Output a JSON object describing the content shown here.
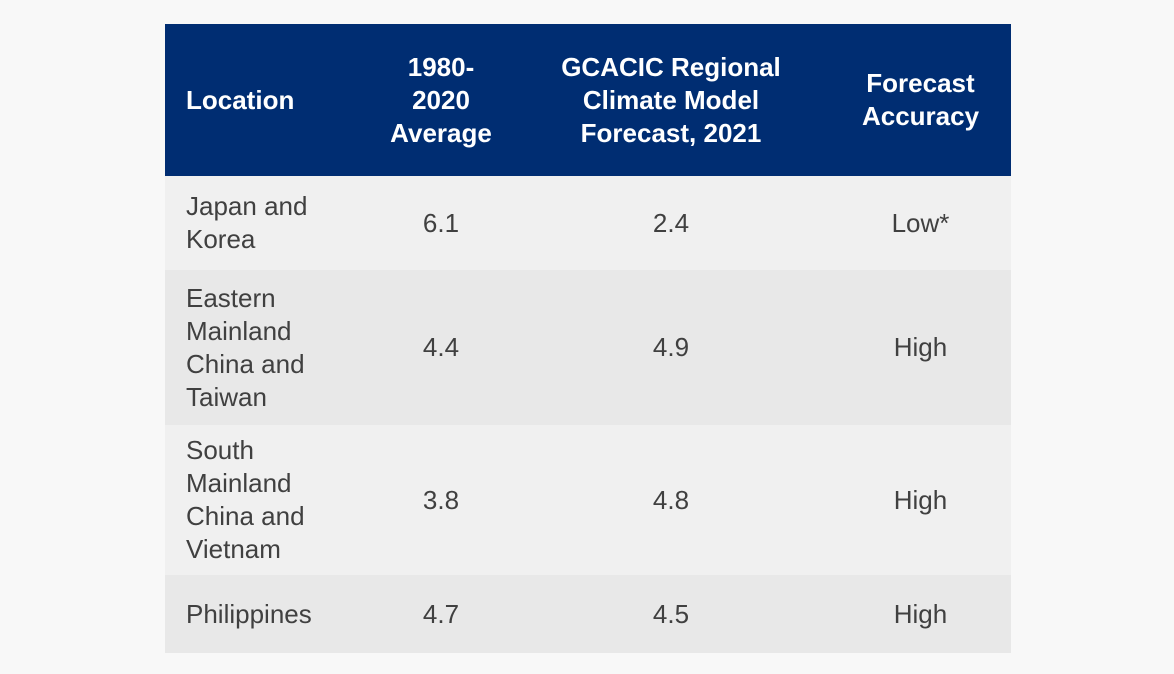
{
  "table": {
    "header": [
      [
        "Location"
      ],
      [
        "1980-",
        "2020",
        "Average"
      ],
      [
        "GCACIC Regional",
        "Climate Model",
        "Forecast, 2021"
      ],
      [
        "Forecast",
        "Accuracy"
      ]
    ],
    "rows": [
      [
        [
          "Japan and",
          "Korea"
        ],
        "6.1",
        "2.4",
        "Low*"
      ],
      [
        [
          "Eastern",
          "Mainland",
          "China and",
          "Taiwan"
        ],
        "4.4",
        "4.9",
        "High"
      ],
      [
        [
          "South",
          "Mainland",
          "China and",
          "Vietnam"
        ],
        "3.8",
        "4.8",
        "High"
      ],
      [
        [
          "Philippines"
        ],
        "4.7",
        "4.5",
        "High"
      ]
    ]
  }
}
